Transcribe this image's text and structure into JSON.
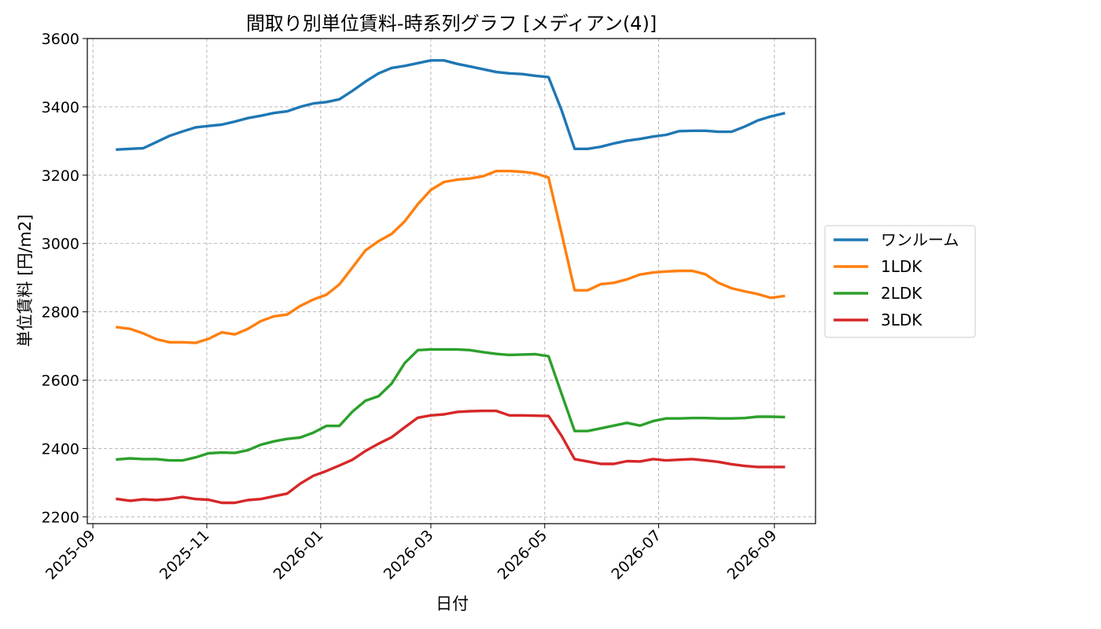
{
  "chart_data": {
    "type": "line",
    "title": "間取り別単位賃料-時系列グラフ [メディアン(4)]",
    "xlabel": "日付",
    "ylabel": "単位賃料 [円/m2]",
    "x_ticks": [
      "2025-09",
      "2025-11",
      "2026-01",
      "2026-03",
      "2026-05",
      "2026-07",
      "2026-09"
    ],
    "y_ticks": [
      2200,
      2400,
      2600,
      2800,
      3000,
      3200,
      3400,
      3600
    ],
    "ylim": [
      2180,
      3600
    ],
    "xlim": [
      "2025-08-29",
      "2026-09-23"
    ],
    "grid": true,
    "legend_position": "right",
    "x": [
      "2025-09-14",
      "2025-09-21",
      "2025-09-28",
      "2025-10-05",
      "2025-10-12",
      "2025-10-19",
      "2025-10-26",
      "2025-11-02",
      "2025-11-09",
      "2025-11-16",
      "2025-11-23",
      "2025-11-30",
      "2025-12-07",
      "2025-12-14",
      "2025-12-21",
      "2025-12-28",
      "2026-01-04",
      "2026-01-11",
      "2026-01-18",
      "2026-01-25",
      "2026-02-01",
      "2026-02-08",
      "2026-02-15",
      "2026-02-22",
      "2026-03-01",
      "2026-03-08",
      "2026-03-15",
      "2026-03-22",
      "2026-03-29",
      "2026-04-05",
      "2026-04-12",
      "2026-04-19",
      "2026-04-26",
      "2026-05-03",
      "2026-05-10",
      "2026-05-17",
      "2026-05-24",
      "2026-05-31",
      "2026-06-07",
      "2026-06-14",
      "2026-06-21",
      "2026-06-28",
      "2026-07-05",
      "2026-07-12",
      "2026-07-19",
      "2026-07-26",
      "2026-08-02",
      "2026-08-09",
      "2026-08-16",
      "2026-08-23",
      "2026-08-30",
      "2026-09-06"
    ],
    "series": [
      {
        "name": "ワンルーム",
        "color": "#1f77b4",
        "values": [
          3275,
          3277,
          3279,
          3297,
          3315,
          3328,
          3340,
          3344,
          3348,
          3357,
          3367,
          3374,
          3382,
          3387,
          3400,
          3410,
          3414,
          3422,
          3447,
          3474,
          3498,
          3514,
          3520,
          3528,
          3536,
          3536,
          3526,
          3518,
          3510,
          3502,
          3498,
          3496,
          3491,
          3487,
          3390,
          3277,
          3277,
          3283,
          3293,
          3301,
          3306,
          3313,
          3318,
          3329,
          3330,
          3330,
          3327,
          3327,
          3342,
          3360,
          3372,
          3381
        ]
      },
      {
        "name": "1LDK",
        "color": "#ff7f0e",
        "values": [
          2755,
          2750,
          2737,
          2720,
          2711,
          2711,
          2709,
          2721,
          2740,
          2734,
          2750,
          2773,
          2787,
          2792,
          2817,
          2836,
          2850,
          2880,
          2930,
          2980,
          3007,
          3028,
          3065,
          3115,
          3157,
          3180,
          3187,
          3190,
          3197,
          3212,
          3212,
          3210,
          3205,
          3193,
          3030,
          2863,
          2863,
          2881,
          2885,
          2895,
          2909,
          2915,
          2918,
          2920,
          2920,
          2910,
          2885,
          2869,
          2860,
          2852,
          2841,
          2846
        ]
      },
      {
        "name": "2LDK",
        "color": "#2ca02c",
        "values": [
          2368,
          2371,
          2369,
          2369,
          2365,
          2365,
          2374,
          2386,
          2388,
          2387,
          2395,
          2411,
          2421,
          2428,
          2432,
          2446,
          2466,
          2466,
          2508,
          2540,
          2553,
          2590,
          2650,
          2688,
          2690,
          2690,
          2690,
          2688,
          2682,
          2677,
          2674,
          2675,
          2676,
          2670,
          2560,
          2451,
          2451,
          2459,
          2467,
          2475,
          2467,
          2480,
          2488,
          2488,
          2489,
          2489,
          2488,
          2488,
          2489,
          2493,
          2493,
          2492
        ]
      },
      {
        "name": "3LDK",
        "color": "#d62728",
        "values": [
          2252,
          2247,
          2251,
          2249,
          2252,
          2258,
          2252,
          2250,
          2241,
          2241,
          2249,
          2252,
          2260,
          2268,
          2297,
          2320,
          2334,
          2350,
          2367,
          2393,
          2414,
          2433,
          2462,
          2490,
          2497,
          2500,
          2507,
          2509,
          2510,
          2510,
          2497,
          2497,
          2496,
          2495,
          2437,
          2369,
          2362,
          2355,
          2355,
          2363,
          2362,
          2369,
          2365,
          2367,
          2369,
          2365,
          2361,
          2354,
          2349,
          2346,
          2346,
          2346
        ]
      }
    ]
  }
}
